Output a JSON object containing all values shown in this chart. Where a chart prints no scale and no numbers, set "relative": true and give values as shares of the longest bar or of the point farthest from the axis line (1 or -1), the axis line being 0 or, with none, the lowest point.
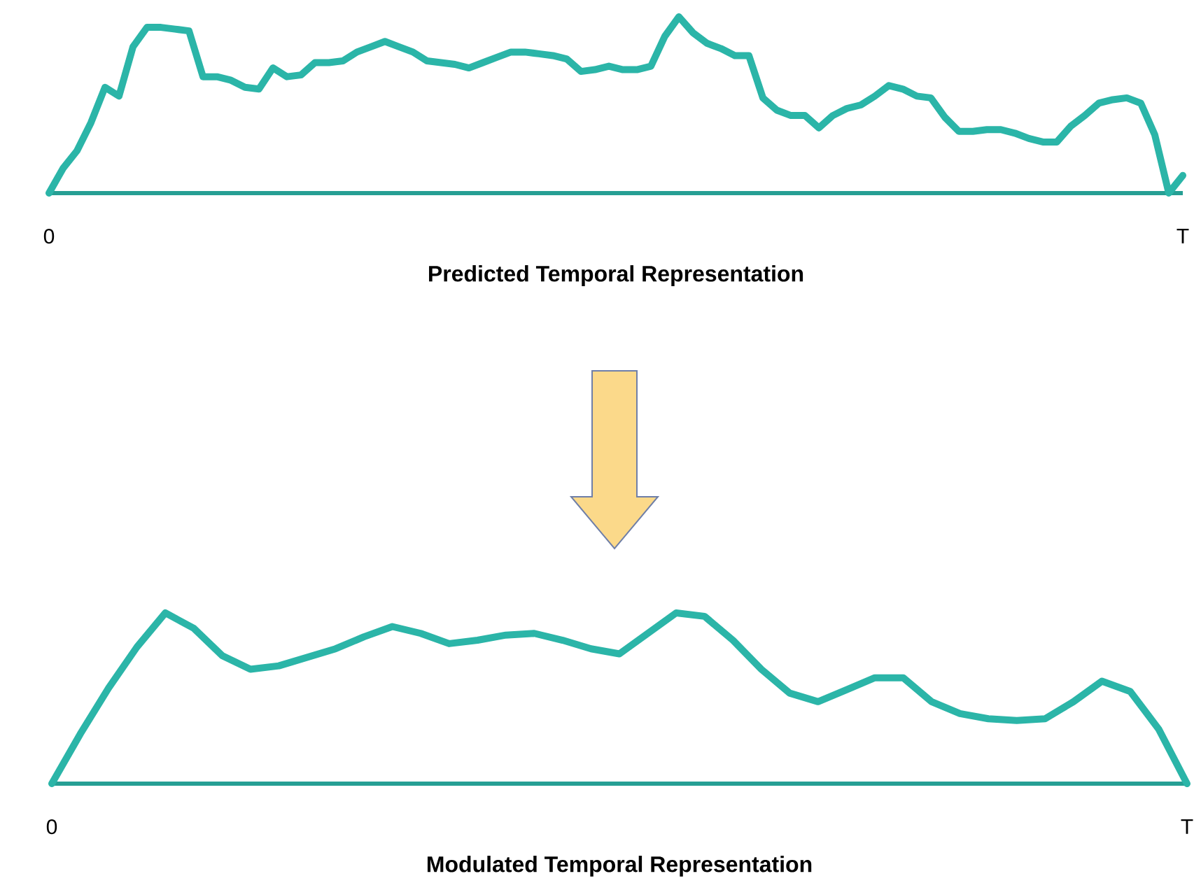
{
  "chart_data": [
    {
      "type": "line",
      "relative": true,
      "xlabel": "Predicted Temporal Representation",
      "color": "#2bb5a8",
      "annotations": [
        "0",
        "T"
      ],
      "categories": [
        null,
        null,
        null,
        null,
        null,
        null,
        null,
        null,
        null,
        null,
        null,
        null,
        null,
        null,
        null,
        null,
        null,
        null,
        null,
        null,
        null,
        null,
        null,
        null,
        null,
        null,
        null,
        null,
        null,
        null,
        null,
        null,
        null,
        null,
        null,
        null,
        null,
        null,
        null,
        null,
        null,
        null,
        null,
        null,
        null,
        null,
        null,
        null,
        null,
        null,
        null,
        null,
        null,
        null,
        null,
        null,
        null,
        null,
        null,
        null,
        null,
        null,
        null,
        null,
        null,
        null,
        null,
        null,
        null,
        null,
        null,
        null,
        null,
        null,
        null,
        null,
        null,
        null,
        null,
        null,
        null,
        null
      ],
      "values": [
        0,
        0.14,
        0.24,
        0.4,
        0.6,
        0.55,
        0.83,
        0.94,
        0.94,
        0.93,
        0.92,
        0.66,
        0.66,
        0.64,
        0.6,
        0.59,
        0.71,
        0.66,
        0.67,
        0.74,
        0.74,
        0.75,
        0.8,
        0.83,
        0.86,
        0.83,
        0.8,
        0.75,
        0.74,
        0.73,
        0.71,
        0.74,
        0.77,
        0.8,
        0.8,
        0.79,
        0.78,
        0.76,
        0.69,
        0.7,
        0.72,
        0.7,
        0.7,
        0.72,
        0.89,
        1,
        0.91,
        0.85,
        0.82,
        0.78,
        0.78,
        0.54,
        0.47,
        0.44,
        0.44,
        0.37,
        0.44,
        0.48,
        0.5,
        0.55,
        0.61,
        0.59,
        0.55,
        0.54,
        0.43,
        0.35,
        0.35,
        0.36,
        0.36,
        0.34,
        0.31,
        0.29,
        0.29,
        0.38,
        0.44,
        0.51,
        0.53,
        0.54,
        0.51,
        0.33,
        0,
        0.1
      ]
    },
    {
      "type": "line",
      "relative": true,
      "xlabel": "Modulated Temporal Representation",
      "color": "#2bb5a8",
      "annotations": [
        "0",
        "T"
      ],
      "categories": [
        null,
        null,
        null,
        null,
        null,
        null,
        null,
        null,
        null,
        null,
        null,
        null,
        null,
        null,
        null,
        null,
        null,
        null,
        null,
        null,
        null,
        null,
        null,
        null,
        null,
        null,
        null,
        null,
        null,
        null,
        null,
        null,
        null,
        null,
        null,
        null,
        null,
        null,
        null,
        null,
        null
      ],
      "values": [
        0,
        0.29,
        0.56,
        0.8,
        1,
        0.91,
        0.75,
        0.67,
        0.69,
        0.74,
        0.79,
        0.86,
        0.92,
        0.88,
        0.82,
        0.84,
        0.87,
        0.88,
        0.84,
        0.79,
        0.76,
        0.88,
        1,
        0.98,
        0.84,
        0.67,
        0.53,
        0.48,
        0.55,
        0.62,
        0.62,
        0.48,
        0.41,
        0.38,
        0.37,
        0.38,
        0.48,
        0.6,
        0.54,
        0.32,
        0
      ]
    }
  ]
}
